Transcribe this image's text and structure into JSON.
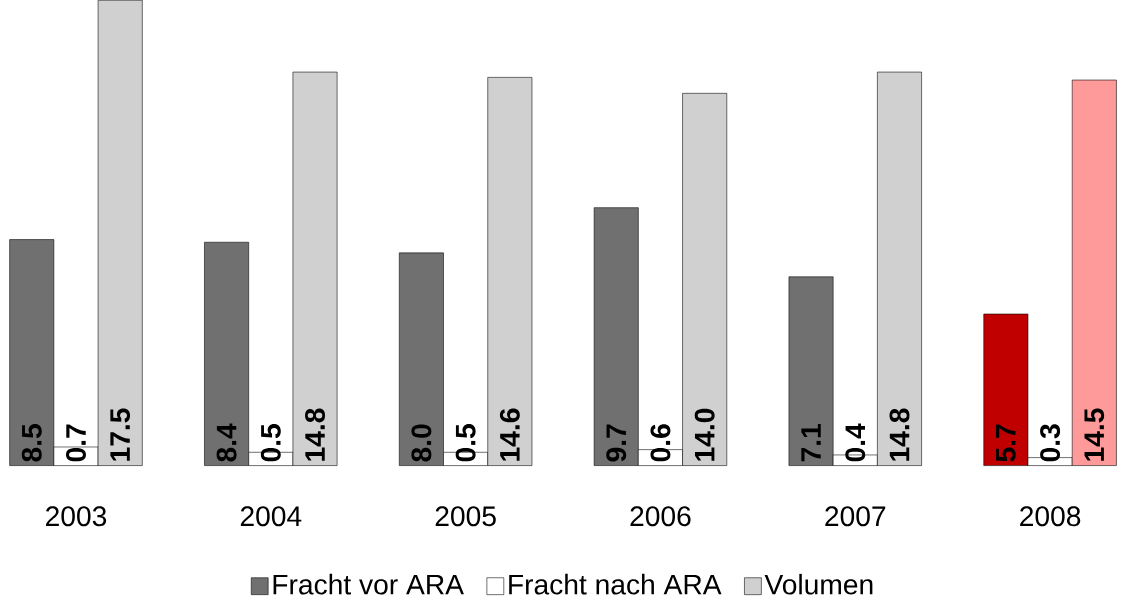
{
  "chart_data": {
    "type": "bar",
    "categories": [
      "2003",
      "2004",
      "2005",
      "2006",
      "2007",
      "2008"
    ],
    "series": [
      {
        "name": "Fracht vor ARA",
        "color": "#707070",
        "colors": [
          "#707070",
          "#707070",
          "#707070",
          "#707070",
          "#707070",
          "#c00000"
        ],
        "values": [
          8.5,
          8.4,
          8.0,
          9.7,
          7.1,
          5.7
        ],
        "value_labels": [
          "8.5",
          "8.4",
          "8.0",
          "9.7",
          "7.1",
          "5.7"
        ]
      },
      {
        "name": "Fracht nach ARA",
        "color": "#ffffff",
        "values": [
          0.7,
          0.5,
          0.5,
          0.6,
          0.4,
          0.3
        ],
        "value_labels": [
          "0.7",
          "0.5",
          "0.5",
          "0.6",
          "0.4",
          "0.3"
        ]
      },
      {
        "name": "Volumen",
        "color": "#d0d0d0",
        "colors": [
          "#d0d0d0",
          "#d0d0d0",
          "#d0d0d0",
          "#d0d0d0",
          "#d0d0d0",
          "#ff9a9a"
        ],
        "values": [
          17.5,
          14.8,
          14.6,
          14.0,
          14.8,
          14.5
        ],
        "value_labels": [
          "17.5",
          "14.8",
          "14.6",
          "14.0",
          "14.8",
          "14.5"
        ]
      }
    ],
    "legend": "bottom"
  }
}
